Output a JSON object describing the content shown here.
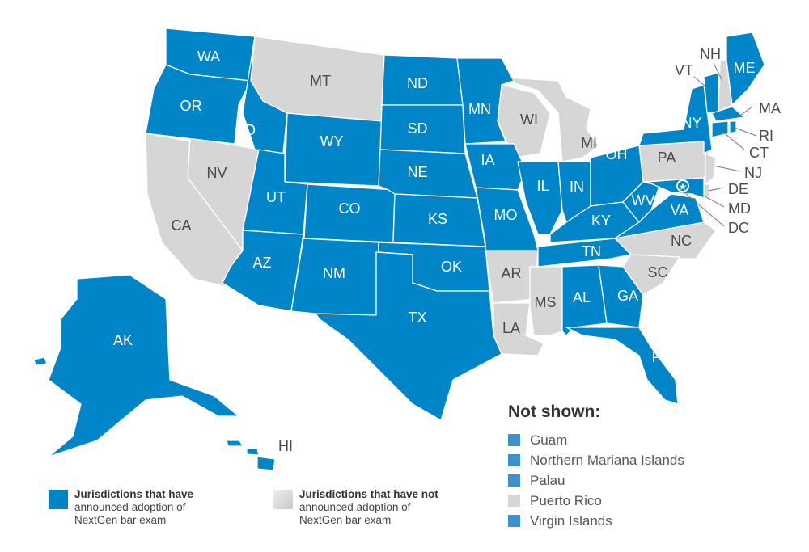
{
  "colors": {
    "adopted": "#0085c8",
    "not_adopted": "#d6d6d6",
    "not_shown_blue": "#3d8fce"
  },
  "labels": {
    "WA": "WA",
    "OR": "OR",
    "CA": "CA",
    "NV": "NV",
    "ID": "ID",
    "MT": "MT",
    "WY": "WY",
    "UT": "UT",
    "AZ": "AZ",
    "CO": "CO",
    "NM": "NM",
    "ND": "ND",
    "SD": "SD",
    "NE": "NE",
    "KS": "KS",
    "OK": "OK",
    "TX": "TX",
    "MN": "MN",
    "IA": "IA",
    "MO": "MO",
    "AR": "AR",
    "LA": "LA",
    "WI": "WI",
    "IL": "IL",
    "MI": "MI",
    "IN": "IN",
    "OH": "OH",
    "KY": "KY",
    "TN": "TN",
    "MS": "MS",
    "AL": "AL",
    "GA": "GA",
    "FL": "FL",
    "SC": "SC",
    "NC": "NC",
    "VA": "VA",
    "WV": "WV",
    "PA": "PA",
    "NY": "NY",
    "VT": "VT",
    "NH": "NH",
    "ME": "ME",
    "MA": "MA",
    "RI": "RI",
    "CT": "CT",
    "NJ": "NJ",
    "DE": "DE",
    "MD": "MD",
    "DC": "DC",
    "AK": "AK",
    "HI": "HI"
  },
  "not_shown": {
    "title": "Not shown:",
    "items": [
      {
        "name": "Guam",
        "status": "adopted"
      },
      {
        "name": "Northern Mariana Islands",
        "status": "adopted"
      },
      {
        "name": "Palau",
        "status": "adopted"
      },
      {
        "name": "Puerto Rico",
        "status": "not_adopted"
      },
      {
        "name": "Virgin Islands",
        "status": "adopted"
      }
    ]
  },
  "legend": {
    "adopted": {
      "title": "Jurisdictions that have",
      "line2": "announced adoption of",
      "line3": "NextGen bar exam"
    },
    "not_adopted": {
      "title": "Jurisdictions that have not",
      "line2": "announced adoption of",
      "line3": "NextGen bar exam"
    }
  }
}
